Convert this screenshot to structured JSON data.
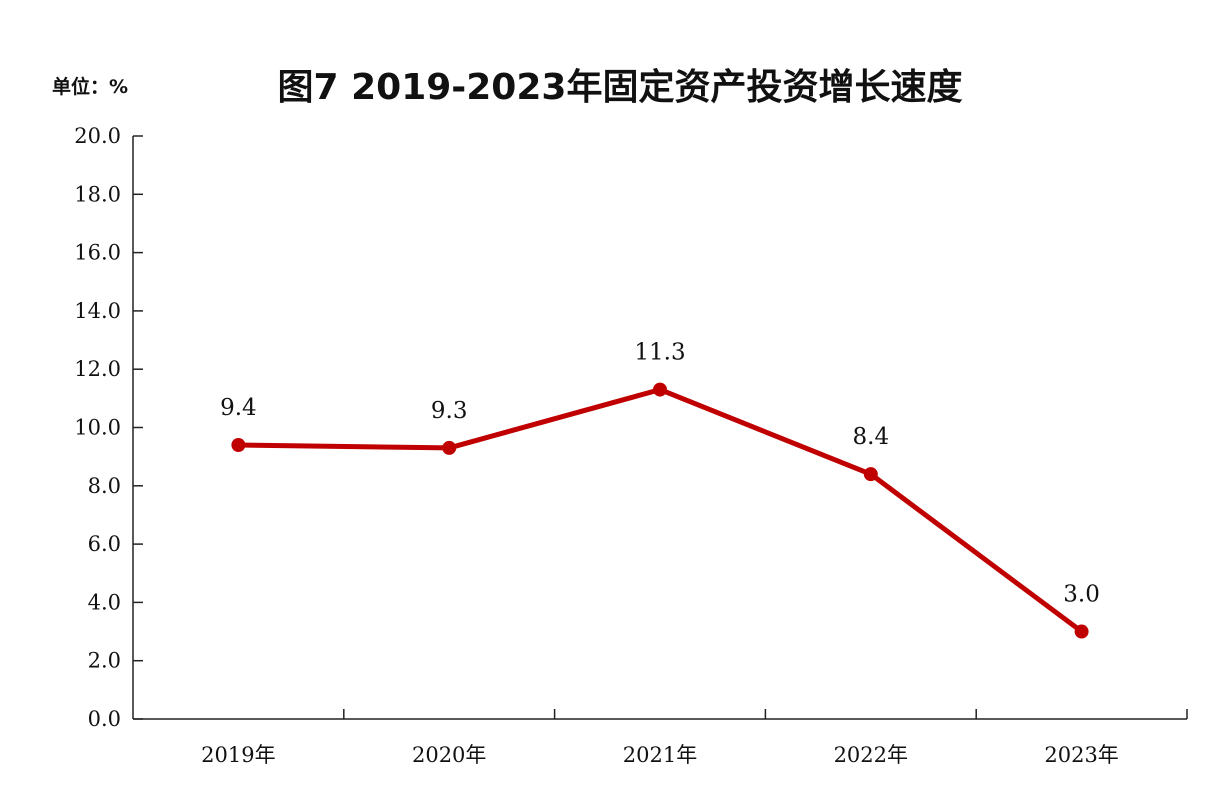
{
  "chart_data": {
    "type": "line",
    "title": "图7 2019-2023年固定资产投资增长速度",
    "unit_label": "单位：%",
    "xlabel": "",
    "ylabel": "",
    "categories": [
      "2019年",
      "2020年",
      "2021年",
      "2022年",
      "2023年"
    ],
    "values": [
      9.4,
      9.3,
      11.3,
      8.4,
      3.0
    ],
    "data_labels": [
      "9.4",
      "9.3",
      "11.3",
      "8.4",
      "3.0"
    ],
    "ylim": [
      0,
      20
    ],
    "yticks": [
      "0.0",
      "2.0",
      "4.0",
      "6.0",
      "8.0",
      "10.0",
      "12.0",
      "14.0",
      "16.0",
      "18.0",
      "20.0"
    ],
    "grid": false,
    "line_color": "#C00000",
    "marker_color": "#C00000"
  }
}
